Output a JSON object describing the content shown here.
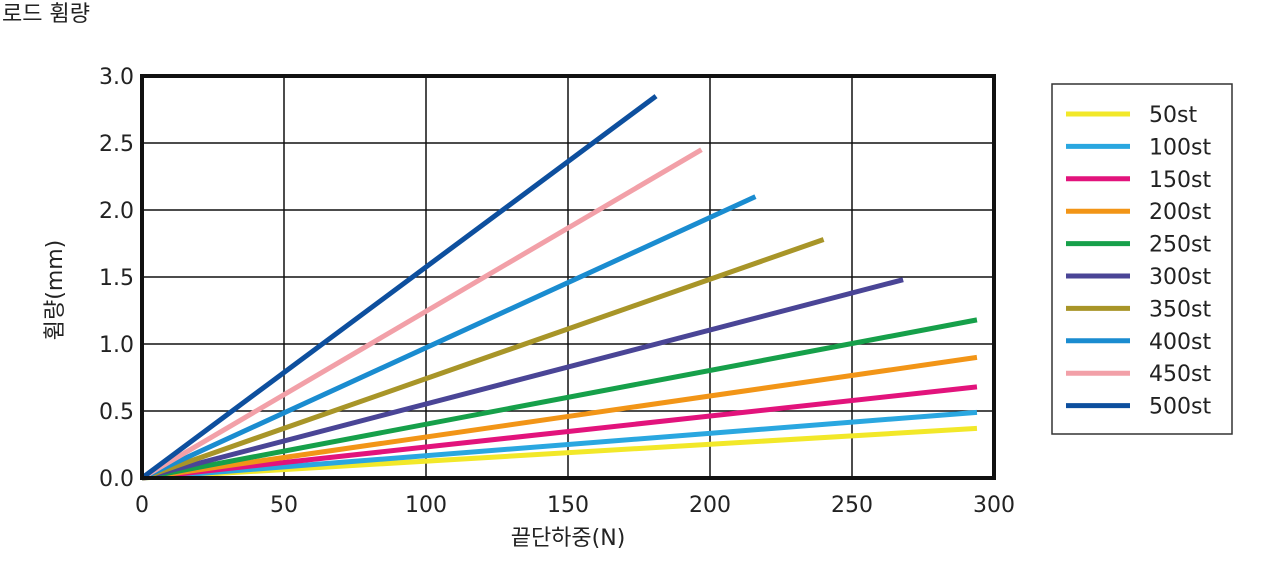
{
  "page_title": "로드 휨량",
  "chart_data": {
    "type": "line",
    "title": "",
    "xlabel": "끝단하중(N)",
    "ylabel": "휨량(mm)",
    "xlim": [
      0,
      300
    ],
    "ylim": [
      0,
      3.0
    ],
    "x_ticks": [
      "0",
      "50",
      "100",
      "150",
      "200",
      "250",
      "300"
    ],
    "y_ticks": [
      "0.0",
      "0.5",
      "1.0",
      "1.5",
      "2.0",
      "2.5",
      "3.0"
    ],
    "grid": true,
    "legend_position": "right",
    "series": [
      {
        "name": "50st",
        "color": "#f2e829",
        "x": [
          0,
          294
        ],
        "y": [
          0,
          0.37
        ]
      },
      {
        "name": "100st",
        "color": "#2aa7e0",
        "x": [
          0,
          294
        ],
        "y": [
          0,
          0.49
        ]
      },
      {
        "name": "150st",
        "color": "#e2137c",
        "x": [
          0,
          294
        ],
        "y": [
          0,
          0.68
        ]
      },
      {
        "name": "200st",
        "color": "#f29517",
        "x": [
          0,
          294
        ],
        "y": [
          0,
          0.9
        ]
      },
      {
        "name": "250st",
        "color": "#16a04a",
        "x": [
          0,
          294
        ],
        "y": [
          0,
          1.18
        ]
      },
      {
        "name": "300st",
        "color": "#4a4596",
        "x": [
          0,
          268
        ],
        "y": [
          0,
          1.48
        ]
      },
      {
        "name": "350st",
        "color": "#a89528",
        "x": [
          0,
          240
        ],
        "y": [
          0,
          1.78
        ]
      },
      {
        "name": "400st",
        "color": "#1a8cd0",
        "x": [
          0,
          216
        ],
        "y": [
          0,
          2.1
        ]
      },
      {
        "name": "450st",
        "color": "#f2a0a8",
        "x": [
          0,
          197
        ],
        "y": [
          0,
          2.45
        ]
      },
      {
        "name": "500st",
        "color": "#0d4f9e",
        "x": [
          0,
          181
        ],
        "y": [
          0,
          2.85
        ]
      }
    ]
  }
}
